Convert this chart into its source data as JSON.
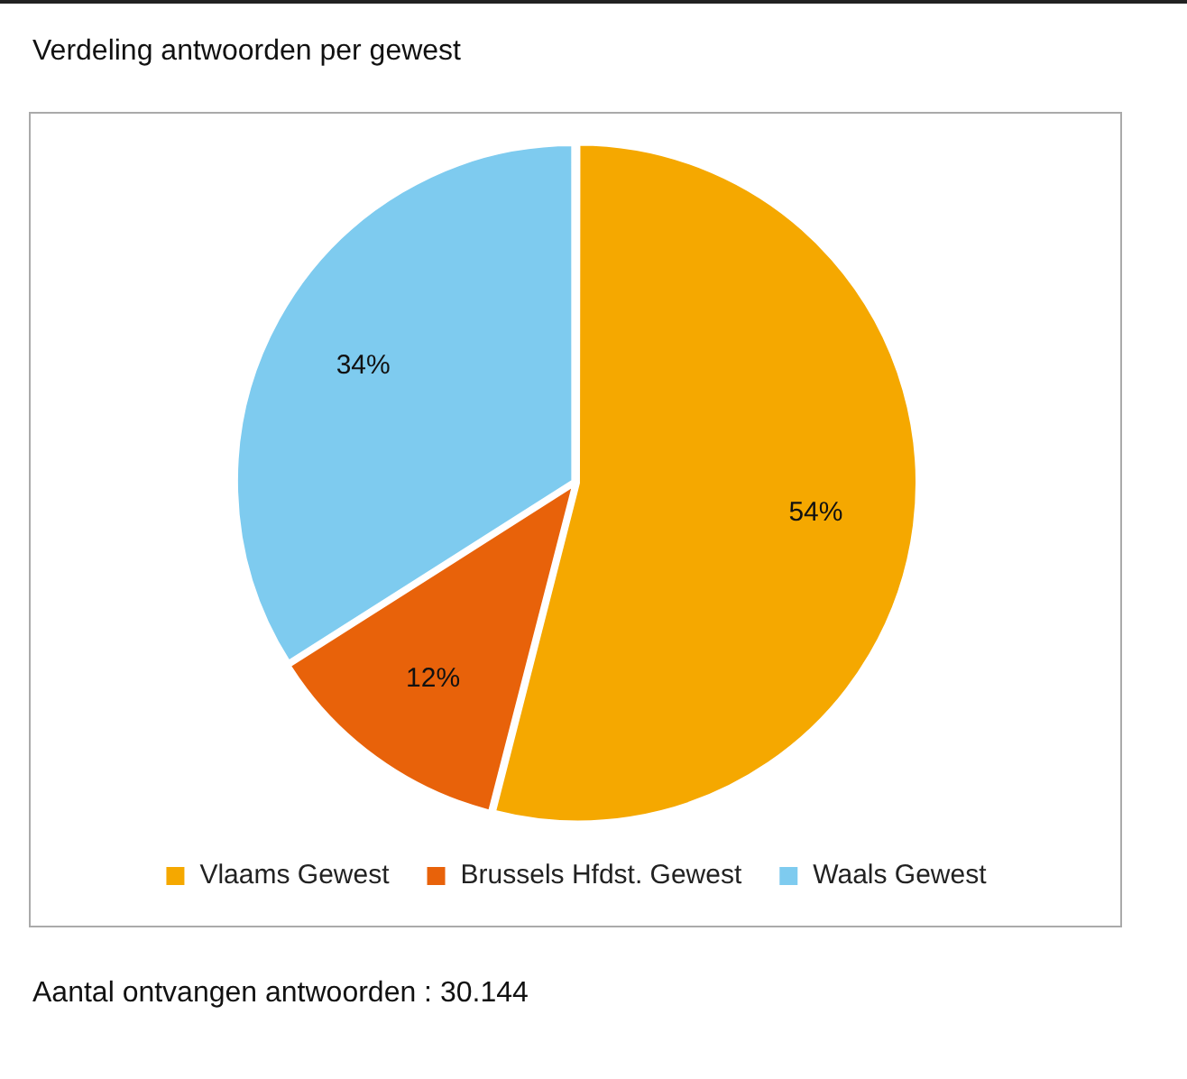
{
  "chart_data": {
    "type": "pie",
    "title": "Verdeling antwoorden per gewest",
    "categories": [
      "Vlaams Gewest",
      "Brussels Hfdst. Gewest",
      "Waals Gewest"
    ],
    "values": [
      54,
      12,
      34
    ],
    "colors": [
      "#f5a800",
      "#e8620a",
      "#7ecbef"
    ],
    "value_labels": [
      "54%",
      "12%",
      "34%"
    ],
    "legend": "bottom",
    "annotations": [
      "Aantal ontvangen antwoorden : 30.144"
    ]
  }
}
